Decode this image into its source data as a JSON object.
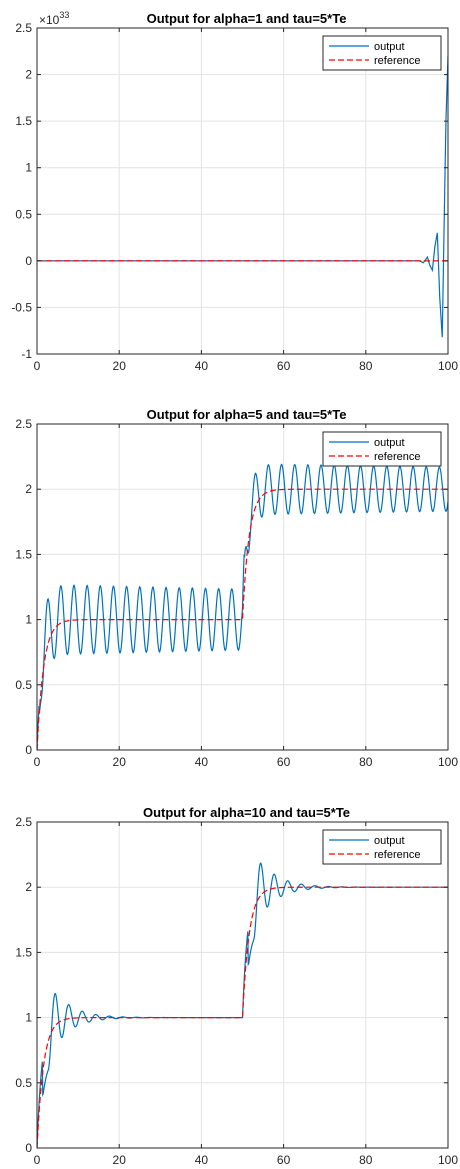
{
  "chart_data": [
    {
      "type": "line",
      "title": "Output for alpha=1 and tau=5*Te",
      "xlim": [
        0,
        100
      ],
      "ylim": [
        -1,
        2.5
      ],
      "y_exponent_label": "×10",
      "y_exponent": "33",
      "xticks": [
        "0",
        "20",
        "40",
        "60",
        "80",
        "100"
      ],
      "yticks": [
        "-1",
        "-0.5",
        "0",
        "0.5",
        "1",
        "1.5",
        "2",
        "2.5"
      ],
      "grid": true,
      "legend": "top-right",
      "series": [
        {
          "name": "output",
          "color": "#0072BD",
          "style": "solid",
          "x": [
            0,
            90,
            93,
            94,
            95,
            95.6,
            96.2,
            96.8,
            97.4,
            98,
            98.6,
            99.1,
            99.5,
            100
          ],
          "y": [
            0,
            0,
            0,
            -0.02,
            0.04,
            -0.05,
            -0.1,
            0.15,
            0.3,
            -0.4,
            -0.82,
            0.5,
            1.5,
            2.2
          ]
        },
        {
          "name": "reference",
          "color": "#FF0000",
          "style": "dashed",
          "x": [
            0,
            100
          ],
          "y": [
            0,
            0
          ]
        }
      ]
    },
    {
      "type": "line",
      "title": "Output for alpha=5 and tau=5*Te",
      "xlim": [
        0,
        100
      ],
      "ylim": [
        0,
        2.5
      ],
      "xticks": [
        "0",
        "20",
        "40",
        "60",
        "80",
        "100"
      ],
      "yticks": [
        "0",
        "0.5",
        "1",
        "1.5",
        "2",
        "2.5"
      ],
      "grid": true,
      "legend": "top-right",
      "series": [
        {
          "name": "output",
          "color": "#0072BD",
          "style": "solid",
          "model": "osc",
          "amp": 0.27,
          "decay": 0.003,
          "period": 3.2,
          "delay": 1.0
        },
        {
          "name": "reference",
          "color": "#FF0000",
          "style": "dashed",
          "model": "ref",
          "tau": 1.6
        }
      ]
    },
    {
      "type": "line",
      "title": "Output for alpha=10 and tau=5*Te",
      "xlim": [
        0,
        100
      ],
      "ylim": [
        0,
        2.5
      ],
      "xticks": [
        "0",
        "20",
        "40",
        "60",
        "80",
        "100"
      ],
      "yticks": [
        "0",
        "0.5",
        "1",
        "1.5",
        "2",
        "2.5"
      ],
      "grid": true,
      "legend": "top-right",
      "series": [
        {
          "name": "output",
          "color": "#0072BD",
          "style": "solid",
          "model": "osc",
          "amp": 0.3,
          "decay": 0.22,
          "period": 3.3,
          "delay": 2.8
        },
        {
          "name": "reference",
          "color": "#FF0000",
          "style": "dashed",
          "model": "ref",
          "tau": 1.6
        }
      ]
    }
  ]
}
